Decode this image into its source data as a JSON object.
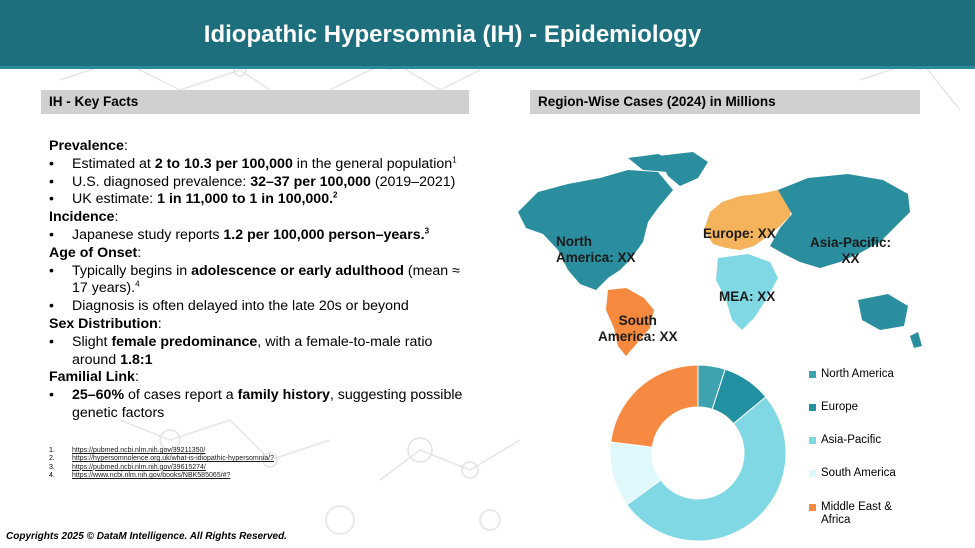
{
  "header": {
    "title": "Idiopathic Hypersomnia (IH) - Epidemiology"
  },
  "key_facts": {
    "heading": "IH - Key Facts",
    "prevalence_title": "Prevalence",
    "p1_a": "Estimated at ",
    "p1_b": "2 to 10.3 per 100,000",
    "p1_c": " in the general population",
    "p1_sup": "1",
    "p2_a": "U.S. diagnosed prevalence: ",
    "p2_b": "32–37 per 100,000",
    "p2_c": " (2019–2021)",
    "p3_a": "UK estimate: ",
    "p3_b": "1 in 11,000 to 1 in 100,000.",
    "p3_sup": "2",
    "incidence_title": "Incidence",
    "i1_a": "Japanese study reports ",
    "i1_b": "1.2 per 100,000 person–years.",
    "i1_sup": "3",
    "onset_title": "Age of Onset",
    "o1_a": "Typically begins in ",
    "o1_b": "adolescence or early adulthood",
    "o1_c": " (mean ≈ 17 years).",
    "o1_sup": "4",
    "o2": "Diagnosis is often delayed into the late 20s or beyond",
    "sex_title": "Sex Distribution",
    "s1_a": "Slight ",
    "s1_b": "female predominance",
    "s1_c": ", with a female-to-male ratio around ",
    "s1_d": "1.8:1",
    "familial_title": "Familial Link",
    "f1_a": "25–60%",
    "f1_b": " of cases report a ",
    "f1_c": "family history",
    "f1_d": ", suggesting possible genetic factors"
  },
  "references": [
    {
      "num": "1.",
      "url": "https://pubmed.ncbi.nlm.nih.gov/39211350/"
    },
    {
      "num": "2.",
      "url": "https://hypersomnolence.org.uk/what-is-idiopathic-hypersomnia/?"
    },
    {
      "num": "3.",
      "url": "https://pubmed.ncbi.nlm.nih.gov/39615274/"
    },
    {
      "num": "4.",
      "url": "https://www.ncbi.nlm.nih.gov/books/NBK585065/#?"
    }
  ],
  "footer": {
    "copyright": "Copyrights 2025 © DataM Intelligence. All Rights Reserved."
  },
  "region": {
    "heading": "Region-Wise Cases (2024) in Millions",
    "map_labels": {
      "north_america_1": "North",
      "north_america_2": "America: XX",
      "europe": "Europe: XX",
      "asia_pacific_1": "Asia-Pacific:",
      "asia_pacific_2": "XX",
      "mea": "MEA: XX",
      "south_america_1": "South",
      "south_america_2": "America: XX"
    },
    "map_colors": {
      "north_america": "#2b8e9e",
      "europe": "#f5b45c",
      "asia_pacific": "#2b8e9e",
      "mea": "#7fd8e4",
      "south_america": "#f58a3f"
    }
  },
  "chart_data": {
    "type": "pie",
    "donut": true,
    "categories": [
      "North America",
      "Europe",
      "Asia-Pacific",
      "South America",
      "Middle East & Africa"
    ],
    "values": [
      0.05,
      0.09,
      0.51,
      0.12,
      0.23
    ],
    "colors": [
      "#3ea3ae",
      "#2291a1",
      "#7fd8e4",
      "#dff8fb",
      "#f68a42"
    ],
    "legend_position": "right"
  }
}
